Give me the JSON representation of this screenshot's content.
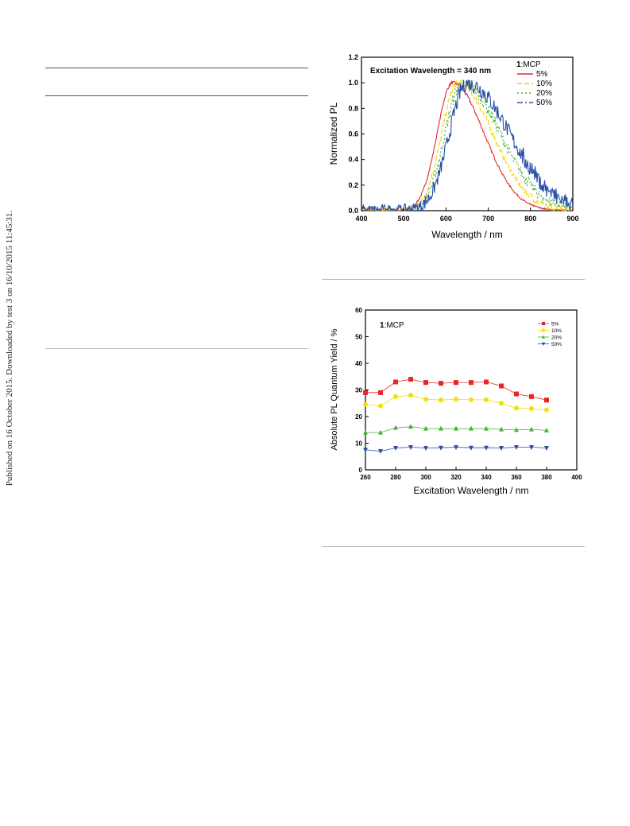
{
  "sidebar_text": "Published on 16 October 2015. Downloaded by test 3 on 16/10/2015 11:45:31.",
  "chart_data": [
    {
      "type": "line",
      "annotation": "Excitation Wavelength = 340 nm",
      "xlabel": "Wavelength / nm",
      "ylabel": "Normalized PL",
      "xlim": [
        400,
        900
      ],
      "ylim": [
        0.0,
        1.2
      ],
      "xticks": [
        "400",
        "500",
        "600",
        "700",
        "800",
        "900"
      ],
      "yticks": [
        "0.0",
        "0.2",
        "0.4",
        "0.6",
        "0.8",
        "1.0",
        "1.2"
      ],
      "legend_title_bold": "1",
      "legend_title_rest": ":MCP",
      "legend_position": "top-right",
      "series": [
        {
          "name": "5%",
          "color": "#e8262a",
          "dash": "solid",
          "peak": 615,
          "w_left": 36,
          "w_right": 75
        },
        {
          "name": "10%",
          "color": "#f2d600",
          "dash": "dash",
          "peak": 628,
          "w_left": 38,
          "w_right": 82
        },
        {
          "name": "20%",
          "color": "#4caf3c",
          "dash": "dot",
          "peak": 638,
          "w_left": 40,
          "w_right": 90
        },
        {
          "name": "50%",
          "color": "#2b4fa8",
          "dash": "dashdot",
          "peak": 650,
          "w_left": 42,
          "w_right": 100
        }
      ]
    },
    {
      "type": "line",
      "annotation_bold": "1",
      "annotation_rest": ":MCP",
      "xlabel": "Excitation Wavelength / nm",
      "ylabel": "Absolute PL Quantum Yield / %",
      "xlim": [
        260,
        400
      ],
      "ylim": [
        0,
        60
      ],
      "xticks": [
        "260",
        "280",
        "300",
        "320",
        "340",
        "360",
        "380",
        "400"
      ],
      "yticks": [
        "0",
        "10",
        "20",
        "30",
        "40",
        "50",
        "60"
      ],
      "legend_position": "top-right",
      "x": [
        260,
        270,
        280,
        290,
        300,
        310,
        320,
        330,
        340,
        350,
        360,
        370,
        380
      ],
      "series": [
        {
          "name": "5%",
          "color": "#e8262a",
          "marker": "square",
          "values": [
            29,
            29,
            33,
            34,
            32.8,
            32.5,
            32.8,
            32.8,
            33,
            31.5,
            28.5,
            27.5,
            26.2
          ]
        },
        {
          "name": "10%",
          "color": "#f2e200",
          "marker": "circle",
          "values": [
            24.5,
            24,
            27.5,
            28,
            26.5,
            26.2,
            26.5,
            26.3,
            26.3,
            25,
            23.2,
            23,
            22.5
          ]
        },
        {
          "name": "20%",
          "color": "#4caf3c",
          "marker": "triangle-up",
          "values": [
            14,
            14,
            15.8,
            16.2,
            15.5,
            15.5,
            15.5,
            15.5,
            15.5,
            15.2,
            15,
            15.2,
            14.8
          ]
        },
        {
          "name": "50%",
          "color": "#2b4fa8",
          "marker": "triangle-down",
          "values": [
            7.5,
            7,
            8.2,
            8.5,
            8.2,
            8.3,
            8.5,
            8.3,
            8.3,
            8.2,
            8.5,
            8.5,
            8.2
          ]
        }
      ]
    }
  ]
}
